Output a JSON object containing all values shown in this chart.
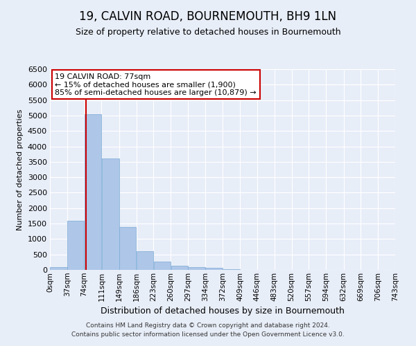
{
  "title": "19, CALVIN ROAD, BOURNEMOUTH, BH9 1LN",
  "subtitle": "Size of property relative to detached houses in Bournemouth",
  "xlabel": "Distribution of detached houses by size in Bournemouth",
  "ylabel": "Number of detached properties",
  "footer_line1": "Contains HM Land Registry data © Crown copyright and database right 2024.",
  "footer_line2": "Contains public sector information licensed under the Open Government Licence v3.0.",
  "annotation_title": "19 CALVIN ROAD: 77sqm",
  "annotation_line1": "← 15% of detached houses are smaller (1,900)",
  "annotation_line2": "85% of semi-detached houses are larger (10,879) →",
  "red_line_x": 77,
  "bar_edges": [
    0,
    37,
    74,
    111,
    149,
    186,
    223,
    260,
    297,
    334,
    372,
    409,
    446,
    483,
    520,
    557,
    594,
    632,
    669,
    706,
    743
  ],
  "bar_heights": [
    80,
    1600,
    5050,
    3600,
    1400,
    600,
    280,
    130,
    100,
    60,
    20,
    5,
    3,
    2,
    1,
    1,
    1,
    0,
    0,
    0
  ],
  "bar_color": "#aec6e8",
  "bar_edge_color": "#7aacd4",
  "red_line_color": "#cc0000",
  "background_color": "#e8eef8",
  "grid_color": "#ffffff",
  "ylim": [
    0,
    6500
  ],
  "yticks": [
    0,
    500,
    1000,
    1500,
    2000,
    2500,
    3000,
    3500,
    4000,
    4500,
    5000,
    5500,
    6000,
    6500
  ],
  "xtick_labels": [
    "0sqm",
    "37sqm",
    "74sqm",
    "111sqm",
    "149sqm",
    "186sqm",
    "223sqm",
    "260sqm",
    "297sqm",
    "334sqm",
    "372sqm",
    "409sqm",
    "446sqm",
    "483sqm",
    "520sqm",
    "557sqm",
    "594sqm",
    "632sqm",
    "669sqm",
    "706sqm",
    "743sqm"
  ],
  "annotation_box_color": "#ffffff",
  "annotation_box_edge": "#cc0000",
  "title_fontsize": 12,
  "subtitle_fontsize": 9,
  "ylabel_fontsize": 8,
  "xlabel_fontsize": 9,
  "annotation_fontsize": 8,
  "footer_fontsize": 6.5
}
